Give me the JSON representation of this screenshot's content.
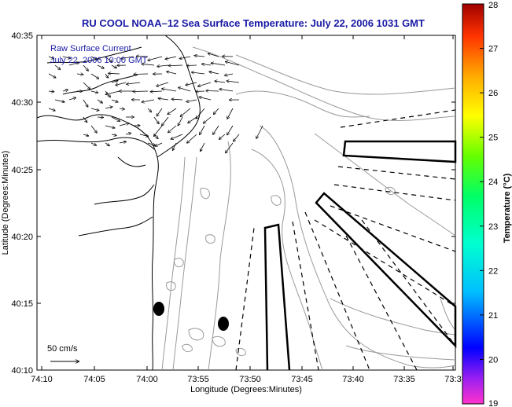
{
  "title": "RU COOL  NOAA–12  Sea Surface Temperature:  July 22, 2006 1031 GMT",
  "legend": {
    "line1": "Raw Surface Current",
    "line2": "July 22, 2006 10:00 GMT"
  },
  "axes": {
    "xlabel": "Longitude (Degrees:Minutes)",
    "ylabel": "Latitude (Degrees:Minutes)",
    "xticks": [
      "74:10",
      "74:05",
      "74:00",
      "73:55",
      "73:50",
      "73:45",
      "73:40",
      "73:35",
      "73:3"
    ],
    "yticks": [
      "40:35",
      "40:30",
      "40:25",
      "40:20",
      "40:15",
      "40:10"
    ]
  },
  "scale_label": "50 cm/s",
  "colorbar": {
    "title": "Temperature (°C)",
    "ticks": [
      "28",
      "27",
      "26",
      "25",
      "24",
      "23",
      "22",
      "21",
      "20",
      "19"
    ],
    "min": 19,
    "max": 28
  },
  "colors": {
    "title": "#1a1aa6",
    "contour": "#9a9a9a",
    "land": "#000000"
  }
}
